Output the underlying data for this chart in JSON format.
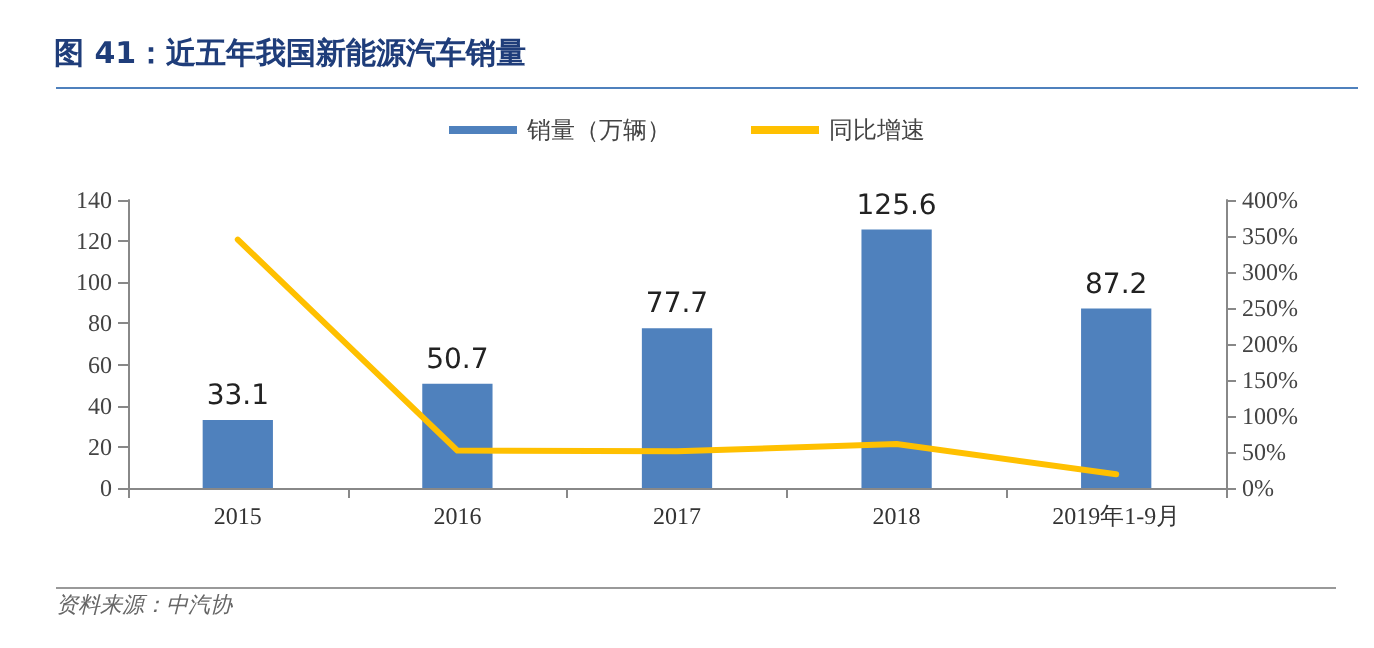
{
  "chart_data": {
    "type": "bar",
    "title": "图 41：近五年我国新能源汽车销量",
    "categories": [
      "2015",
      "2016",
      "2017",
      "2018",
      "2019年1-9月"
    ],
    "series": [
      {
        "name": "销量（万辆）",
        "color": "#4f81bd",
        "values": [
          33.1,
          50.7,
          77.7,
          125.6,
          87.2
        ],
        "value_labels": [
          "33.1",
          "50.7",
          "77.7",
          "125.6",
          "87.2"
        ]
      },
      {
        "name": "同比增速",
        "type": "line",
        "axis": "y2",
        "color": "#ffc000",
        "values": [
          345,
          52,
          51,
          61,
          19
        ],
        "marker": "none"
      }
    ],
    "ylim": [
      0,
      140
    ],
    "yticks": [
      0,
      20,
      40,
      60,
      80,
      100,
      120,
      140
    ],
    "y2lim": [
      0,
      400
    ],
    "y2ticks": [
      {
        "value": 0,
        "label": "0%"
      },
      {
        "value": 50,
        "label": "50%"
      },
      {
        "value": 100,
        "label": "100%"
      },
      {
        "value": 150,
        "label": "150%"
      },
      {
        "value": 200,
        "label": "200%"
      },
      {
        "value": 250,
        "label": "250%"
      },
      {
        "value": 300,
        "label": "300%"
      },
      {
        "value": 350,
        "label": "350%"
      },
      {
        "value": 400,
        "label": "400%"
      }
    ],
    "grid": false,
    "legend": "top",
    "annotations": [
      "资料来源：中汽协"
    ]
  }
}
